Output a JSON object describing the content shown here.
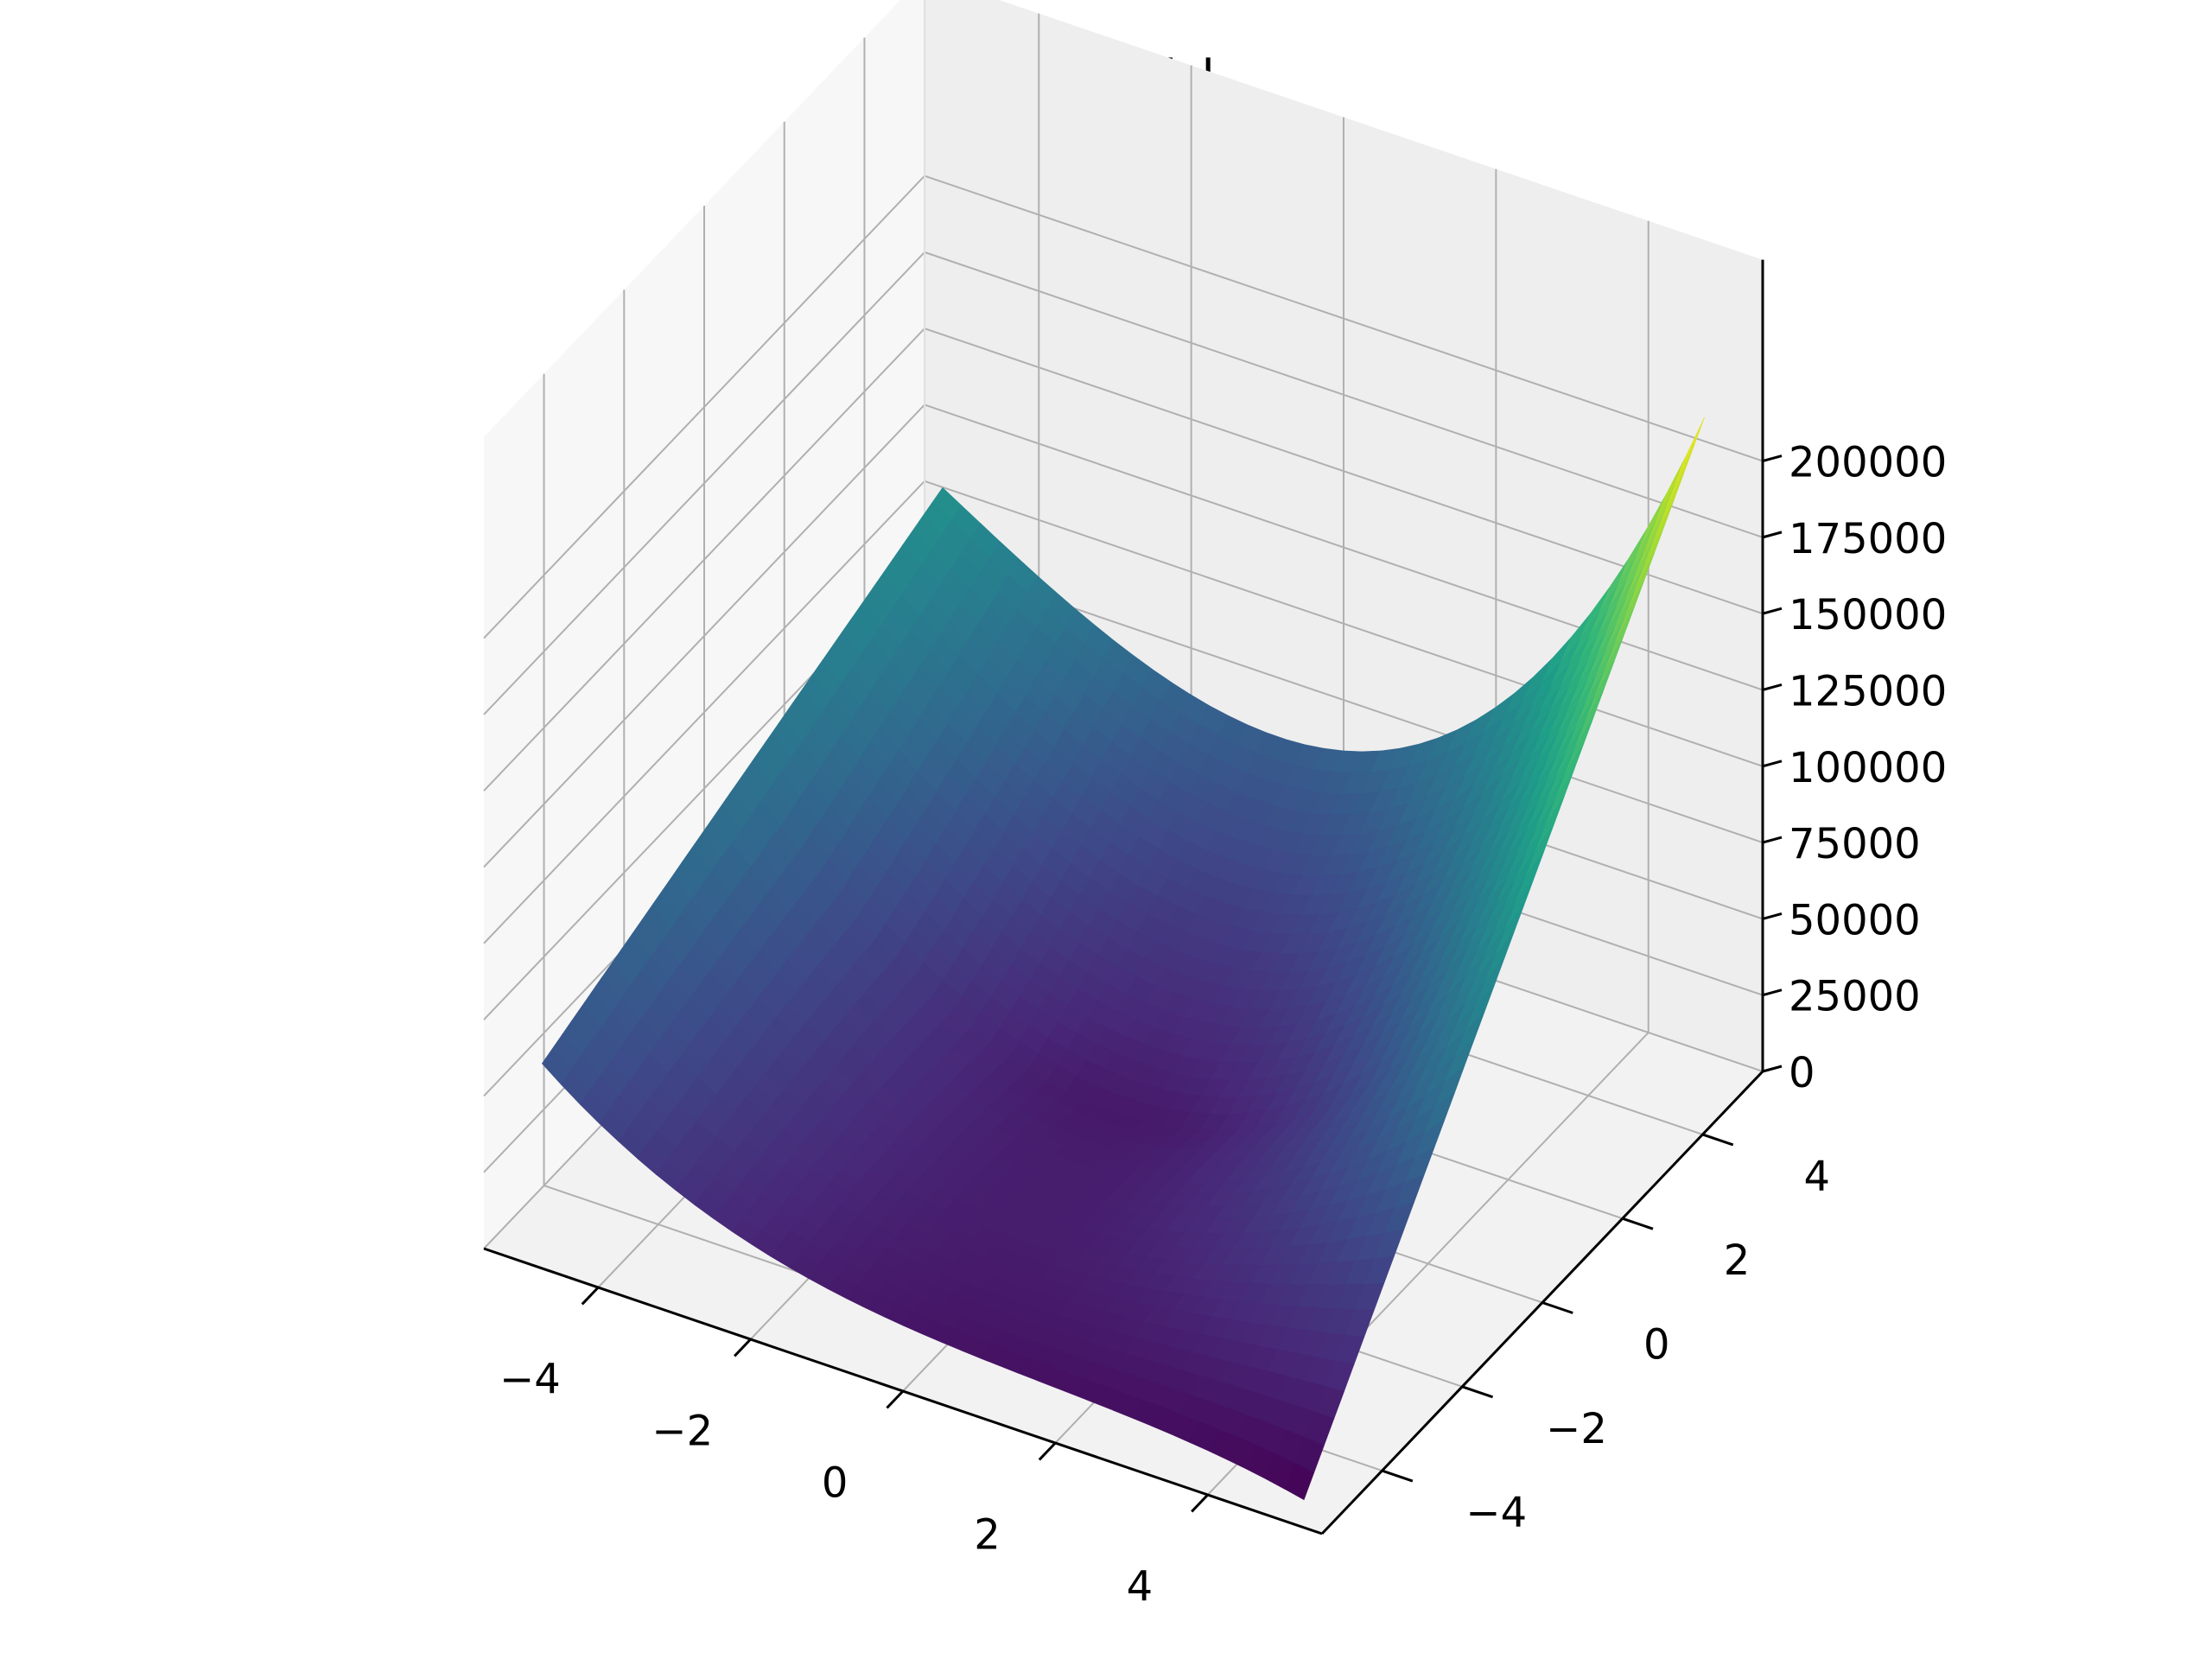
{
  "chart_data": {
    "type": "surface",
    "title": "Schwefel",
    "x": {
      "label": "",
      "range": [
        -5,
        5
      ],
      "ticks": [
        -4,
        -2,
        0,
        2,
        4
      ],
      "tick_labels": [
        "−4",
        "−2",
        "0",
        "2",
        "4"
      ]
    },
    "y": {
      "label": "",
      "range": [
        -5,
        5
      ],
      "ticks": [
        -4,
        -2,
        0,
        2,
        4
      ],
      "tick_labels": [
        "−4",
        "−2",
        "0",
        "2",
        "4"
      ]
    },
    "z": {
      "label": "",
      "range": [
        0,
        218000
      ],
      "ticks": [
        0,
        25000,
        50000,
        75000,
        100000,
        125000,
        150000,
        175000,
        200000
      ],
      "tick_labels": [
        "0",
        "25000",
        "50000",
        "75000",
        "100000",
        "125000",
        "150000",
        "175000",
        "200000"
      ]
    },
    "colormap": "viridis",
    "grid": true,
    "corner_values": {
      "x-5_y-5": 58000,
      "x5_y-5": 0,
      "x-5_y5": 109000,
      "x5_y5": 217000
    },
    "max": 217000,
    "min": 0
  }
}
